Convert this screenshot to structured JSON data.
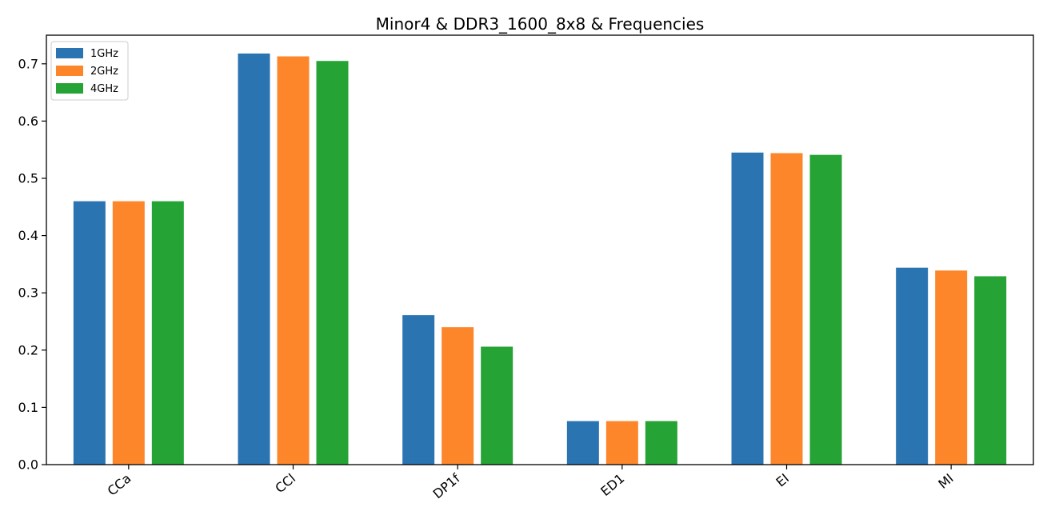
{
  "chart_data": {
    "type": "bar",
    "title": "Minor4 & DDR3_1600_8x8 & Frequencies",
    "xlabel": "",
    "ylabel": "",
    "categories": [
      "CCa",
      "CCl",
      "DP1f",
      "ED1",
      "EI",
      "MI"
    ],
    "series": [
      {
        "name": "1GHz",
        "color": "#2a74b2",
        "values": [
          0.46,
          0.718,
          0.261,
          0.076,
          0.545,
          0.344
        ]
      },
      {
        "name": "2GHz",
        "color": "#fd862b",
        "values": [
          0.46,
          0.713,
          0.24,
          0.076,
          0.544,
          0.339
        ]
      },
      {
        "name": "4GHz",
        "color": "#25a334",
        "values": [
          0.46,
          0.705,
          0.206,
          0.076,
          0.541,
          0.329
        ]
      }
    ],
    "ylim": [
      0,
      0.75
    ],
    "yticks": [
      0.0,
      0.1,
      0.2,
      0.3,
      0.4,
      0.5,
      0.6,
      0.7
    ],
    "ytick_labels": [
      "0.0",
      "0.1",
      "0.2",
      "0.3",
      "0.4",
      "0.5",
      "0.6",
      "0.7"
    ],
    "xtick_rotation": "rotated",
    "grid": false,
    "legend_position": "upper-left"
  }
}
